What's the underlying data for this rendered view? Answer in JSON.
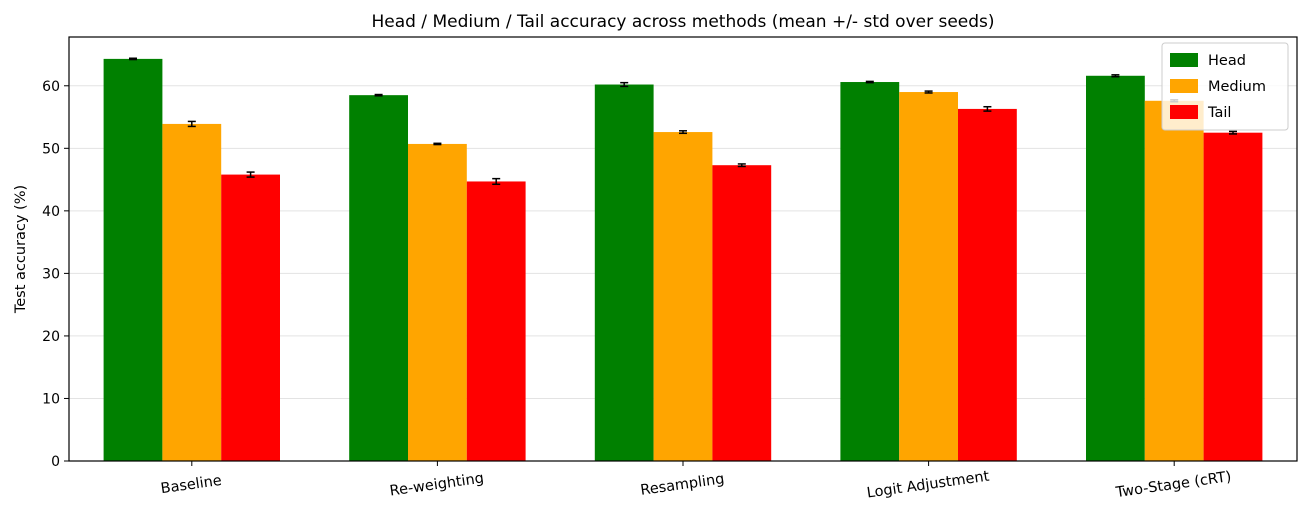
{
  "chart_data": {
    "type": "bar",
    "title": "Head / Medium / Tail accuracy across methods (mean +/- std over seeds)",
    "xlabel": "",
    "ylabel": "Test accuracy (%)",
    "ylim": [
      0,
      67.8
    ],
    "yticks": [
      0,
      10,
      20,
      30,
      40,
      50,
      60
    ],
    "grid": "horizontal",
    "legend_position": "top-right",
    "categories": [
      "Baseline",
      "Re-weighting",
      "Resampling",
      "Logit Adjustment",
      "Two-Stage (cRT)"
    ],
    "series": [
      {
        "name": "Head",
        "color": "#008000",
        "values": [
          64.3,
          58.5,
          60.2,
          60.6,
          61.6
        ],
        "errors": [
          0.1,
          0.1,
          0.3,
          0.1,
          0.15
        ]
      },
      {
        "name": "Medium",
        "color": "#FFA500",
        "values": [
          53.9,
          50.7,
          52.6,
          59.0,
          57.6
        ],
        "errors": [
          0.4,
          0.1,
          0.2,
          0.15,
          0.15
        ]
      },
      {
        "name": "Tail",
        "color": "#FF0000",
        "values": [
          45.8,
          44.7,
          47.3,
          56.3,
          52.5
        ],
        "errors": [
          0.4,
          0.45,
          0.2,
          0.35,
          0.2
        ]
      }
    ]
  }
}
